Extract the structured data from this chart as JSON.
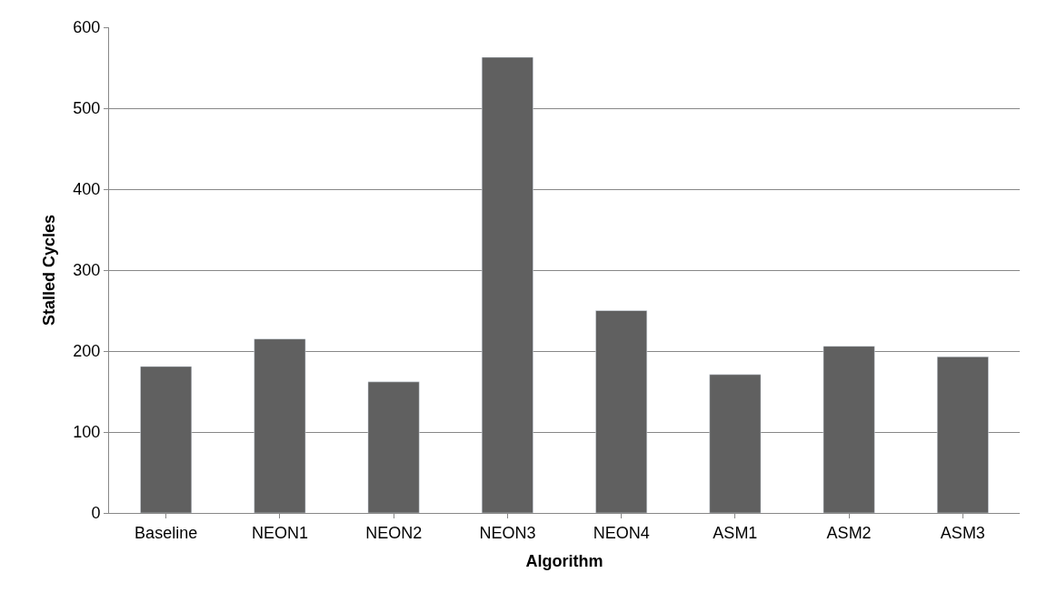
{
  "chart_data": {
    "type": "bar",
    "xlabel": "Algorithm",
    "ylabel": "Stalled Cycles",
    "categories": [
      "Baseline",
      "NEON1",
      "NEON2",
      "NEON3",
      "NEON4",
      "ASM1",
      "ASM2",
      "ASM3"
    ],
    "values": [
      181,
      215,
      162,
      563,
      250,
      171,
      206,
      193
    ],
    "color": "#606060",
    "ylim": [
      0,
      600
    ],
    "yticks": [
      0,
      100,
      200,
      300,
      400,
      500,
      600
    ],
    "grid": "y"
  }
}
